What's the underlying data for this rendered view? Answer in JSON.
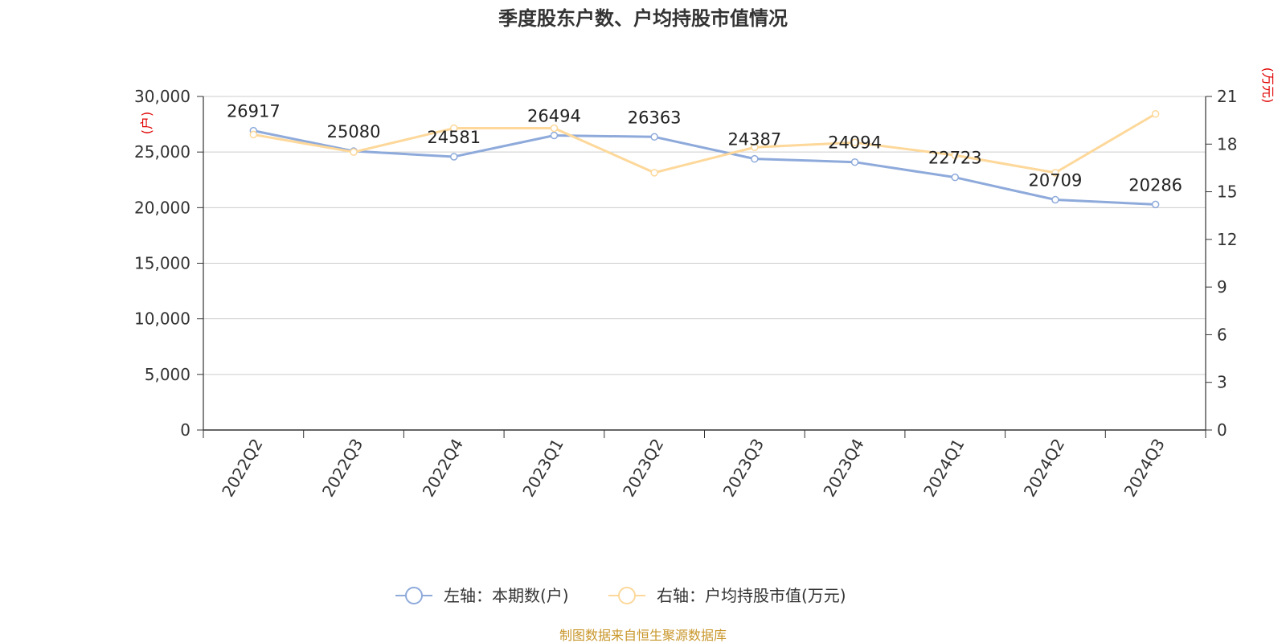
{
  "title": "季度股东户数、户均持股市值情况",
  "source": "制图数据来自恒生聚源数据库",
  "colors": {
    "left_series": "#8eaadb",
    "right_series": "#fdd89a",
    "axis": "#333333",
    "grid": "#cccccc",
    "unit": "#e00000",
    "source": "#c8962a"
  },
  "chart_data": {
    "type": "line",
    "categories": [
      "2022Q2",
      "2022Q3",
      "2022Q4",
      "2023Q1",
      "2023Q2",
      "2023Q3",
      "2023Q4",
      "2024Q1",
      "2024Q2",
      "2024Q3"
    ],
    "left_axis": {
      "unit": "(户)",
      "ylim": [
        0,
        30000
      ],
      "ticks": [
        "0",
        "5,000",
        "10,000",
        "15,000",
        "20,000",
        "25,000",
        "30,000"
      ]
    },
    "right_axis": {
      "unit": "(万元)",
      "ylim": [
        0,
        21
      ],
      "ticks": [
        "0",
        "3",
        "6",
        "9",
        "12",
        "15",
        "18",
        "21"
      ]
    },
    "series": [
      {
        "name": "左轴：本期数(户)",
        "axis": "left",
        "values": [
          26917,
          25080,
          24581,
          26494,
          26363,
          24387,
          24094,
          22723,
          20709,
          20286
        ],
        "labels": [
          "26917",
          "25080",
          "24581",
          "26494",
          "26363",
          "24387",
          "24094",
          "22723",
          "20709",
          "20286"
        ]
      },
      {
        "name": "右轴：户均持股市值(万元)",
        "axis": "right",
        "values": [
          18.6,
          17.5,
          19.0,
          19.0,
          16.2,
          17.8,
          18.1,
          17.3,
          16.2,
          19.9
        ]
      }
    ],
    "grid": true,
    "legend": "bottom-center"
  }
}
